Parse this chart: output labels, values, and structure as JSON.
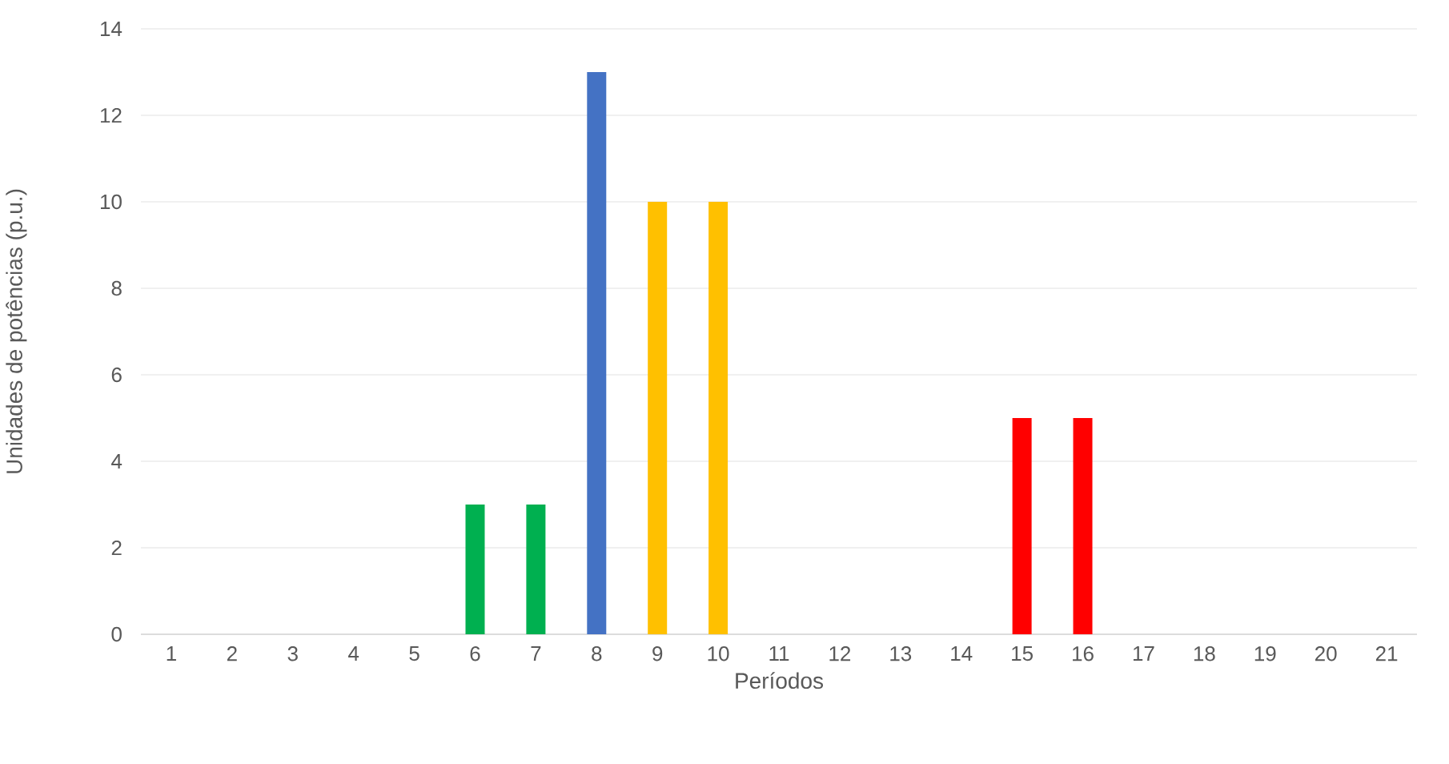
{
  "chart_data": {
    "type": "bar",
    "xlabel": "Períodos",
    "ylabel": "Unidades de potências (p.u.)",
    "categories": [
      "1",
      "2",
      "3",
      "4",
      "5",
      "6",
      "7",
      "8",
      "9",
      "10",
      "11",
      "12",
      "13",
      "14",
      "15",
      "16",
      "17",
      "18",
      "19",
      "20",
      "21"
    ],
    "values": [
      0,
      0,
      0,
      0,
      0,
      3,
      3,
      13,
      10,
      10,
      0,
      0,
      0,
      0,
      5,
      5,
      0,
      0,
      0,
      0,
      0
    ],
    "colors": [
      "#4472c4",
      "#4472c4",
      "#4472c4",
      "#4472c4",
      "#4472c4",
      "#00b050",
      "#00b050",
      "#4472c4",
      "#ffc000",
      "#ffc000",
      "#4472c4",
      "#4472c4",
      "#4472c4",
      "#4472c4",
      "#ff0000",
      "#ff0000",
      "#4472c4",
      "#4472c4",
      "#4472c4",
      "#4472c4",
      "#4472c4"
    ],
    "ylim": [
      0,
      14
    ],
    "yticks": [
      0,
      2,
      4,
      6,
      8,
      10,
      12,
      14
    ],
    "grid": "y"
  }
}
